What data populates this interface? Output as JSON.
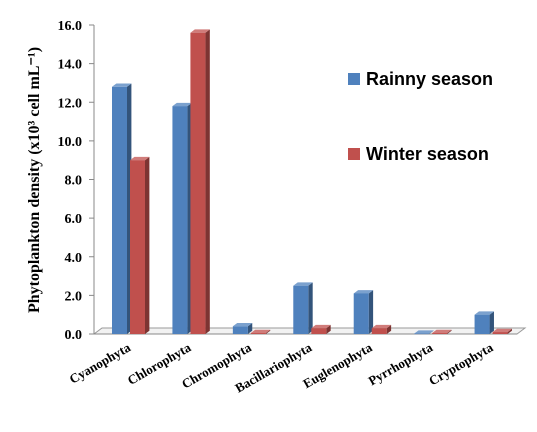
{
  "chart_data": {
    "type": "bar",
    "title": "",
    "xlabel": "",
    "ylabel": "Phytoplankton density (x10³ cell mL⁻¹)",
    "ylim": [
      0,
      16
    ],
    "yticks": [
      "0.0",
      "2.0",
      "4.0",
      "6.0",
      "8.0",
      "10.0",
      "12.0",
      "14.0",
      "16.0"
    ],
    "categories": [
      "Cyanophyta",
      "Chlorophyta",
      "Chromophyta",
      "Bacillariophyta",
      "Euglenophyta",
      "Pyrrhophyta",
      "Cryptophyta"
    ],
    "series": [
      {
        "name": "Rainny season",
        "color": "#4F81BD",
        "values": [
          12.8,
          11.8,
          0.4,
          2.5,
          2.1,
          0.02,
          1.0
        ]
      },
      {
        "name": "Winter season",
        "color": "#C0504D",
        "values": [
          9.0,
          15.6,
          0.05,
          0.3,
          0.3,
          0.05,
          0.1
        ]
      }
    ],
    "grid": false,
    "legend_position": "right",
    "style": "3d-clustered-bar"
  }
}
